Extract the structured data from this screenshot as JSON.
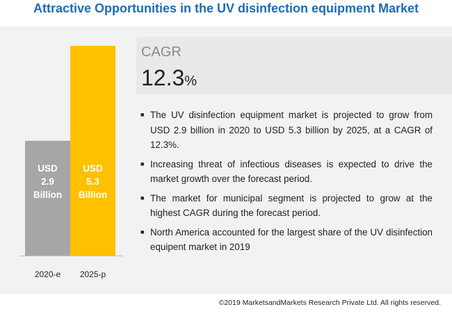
{
  "title": "Attractive Opportunities in the UV disinfection equipment Market",
  "cagr": {
    "label": "CAGR",
    "value": "12.3",
    "unit": "%"
  },
  "bullets": [
    "The UV disinfection equipment market is projected to grow from USD 2.9 billion in 2020 to USD 5.3 billion by 2025, at a CAGR of 12.3%.",
    "Increasing threat of infectious diseases is expected to drive the market growth over the forecast period.",
    "The market for municipal segment is projected to grow at the highest CAGR during the forecast period.",
    "North America accounted for the largest share of the UV disinfection equipent market in 2019"
  ],
  "footer": "©2019 MarketsandMarkets Research Private Ltd. All rights reserved.",
  "chart_data": {
    "type": "bar",
    "categories": [
      "2020-e",
      "2025-p"
    ],
    "values": [
      2.9,
      5.3
    ],
    "bar_labels": [
      [
        "USD",
        "2.9",
        "Billion"
      ],
      [
        "USD",
        "5.3",
        "Billion"
      ]
    ],
    "colors": [
      "#a6a6a6",
      "#ffc000"
    ],
    "ylim": [
      0,
      5.3
    ],
    "grid": false
  }
}
